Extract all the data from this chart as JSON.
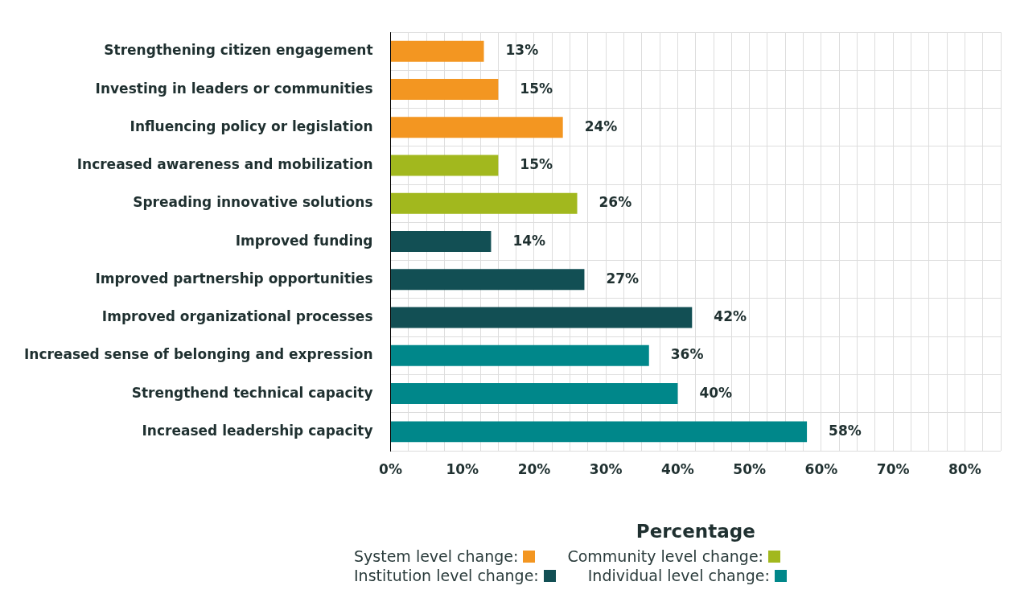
{
  "chart_data": {
    "type": "bar",
    "orientation": "horizontal",
    "stacked": true,
    "xlabel": "Percentage",
    "categories": [
      "Strengthening citizen engagement",
      "Investing in leaders or communities",
      "Influencing policy or legislation",
      "Increased awareness and mobilization",
      "Spreading innovative solutions",
      "Improved funding",
      "Improved partnership opportunities",
      "Improved organizational processes",
      "Increased sense of belonging and expression",
      "Strengthend technical capacity",
      "Increased leadership capacity"
    ],
    "series": [
      {
        "name": "System level change:",
        "color": "#f39621",
        "values": [
          13,
          15,
          24,
          null,
          null,
          null,
          null,
          null,
          null,
          null,
          null
        ],
        "value_labels": [
          "13%",
          "15%",
          "24%",
          null,
          null,
          null,
          null,
          null,
          null,
          null,
          null
        ]
      },
      {
        "name": "Community level change:",
        "color": "#a2b81e",
        "values": [
          null,
          null,
          null,
          15,
          26,
          null,
          null,
          null,
          null,
          null,
          null
        ],
        "value_labels": [
          null,
          null,
          null,
          "15%",
          "26%",
          null,
          null,
          null,
          null,
          null,
          null
        ]
      },
      {
        "name": "Institution level change:",
        "color": "#124f54",
        "values": [
          null,
          null,
          null,
          null,
          null,
          14,
          27,
          42,
          null,
          null,
          null
        ],
        "value_labels": [
          null,
          null,
          null,
          null,
          null,
          "14%",
          "27%",
          "42%",
          null,
          null,
          null
        ]
      },
      {
        "name": "Individual level change:",
        "color": "#00878a",
        "values": [
          null,
          null,
          null,
          null,
          null,
          null,
          null,
          null,
          36,
          40,
          58
        ],
        "value_labels": [
          null,
          null,
          null,
          null,
          null,
          null,
          null,
          null,
          "36%",
          "40%",
          "58%"
        ]
      }
    ],
    "xlim": [
      0,
      85
    ],
    "xticks": [
      {
        "value": 0,
        "label": "0%"
      },
      {
        "value": 2.5,
        "label": null
      },
      {
        "value": 5,
        "label": null
      },
      {
        "value": 7.5,
        "label": null
      },
      {
        "value": 10,
        "label": "10%"
      },
      {
        "value": 12.5,
        "label": null
      },
      {
        "value": 15,
        "label": null
      },
      {
        "value": 17.5,
        "label": null
      },
      {
        "value": 20,
        "label": "20%"
      },
      {
        "value": 22.5,
        "label": null
      },
      {
        "value": 25,
        "label": null
      },
      {
        "value": 27.5,
        "label": null
      },
      {
        "value": 30,
        "label": "30%"
      },
      {
        "value": 32.5,
        "label": null
      },
      {
        "value": 35,
        "label": null
      },
      {
        "value": 37.5,
        "label": null
      },
      {
        "value": 40,
        "label": "40%"
      },
      {
        "value": 42.5,
        "label": null
      },
      {
        "value": 45,
        "label": null
      },
      {
        "value": 47.5,
        "label": null
      },
      {
        "value": 50,
        "label": "50%"
      },
      {
        "value": 52.5,
        "label": null
      },
      {
        "value": 55,
        "label": null
      },
      {
        "value": 57.5,
        "label": null
      },
      {
        "value": 60,
        "label": "60%"
      },
      {
        "value": 62.5,
        "label": null
      },
      {
        "value": 65,
        "label": null
      },
      {
        "value": 67.5,
        "label": null
      },
      {
        "value": 70,
        "label": "70%"
      },
      {
        "value": 72.5,
        "label": null
      },
      {
        "value": 75,
        "label": null
      },
      {
        "value": 77.5,
        "label": null
      },
      {
        "value": 80,
        "label": "80%"
      },
      {
        "value": 82.5,
        "label": null
      },
      {
        "value": 85,
        "label": null
      }
    ],
    "grid": true,
    "legend": "bottom"
  }
}
